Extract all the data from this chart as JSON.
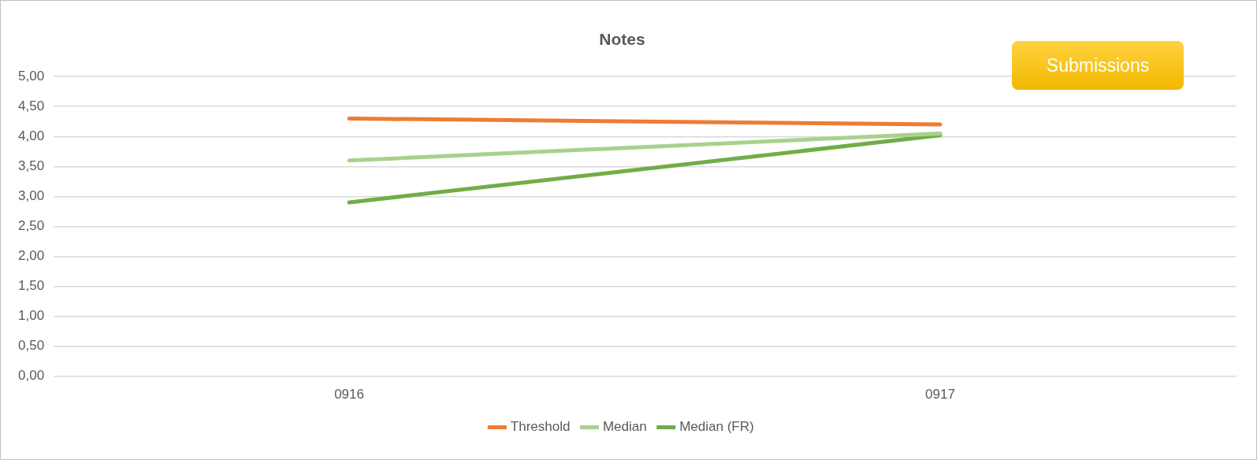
{
  "chart_data": {
    "type": "line",
    "title": "Notes",
    "categories": [
      "0916",
      "0917"
    ],
    "series": [
      {
        "name": "Threshold",
        "color": "#ed7d31",
        "values": [
          4.3,
          4.2
        ]
      },
      {
        "name": "Median",
        "color": "#a9d18e",
        "values": [
          3.6,
          4.05
        ]
      },
      {
        "name": "Median (FR)",
        "color": "#70ad47",
        "values": [
          2.9,
          4.02
        ]
      }
    ],
    "ylim": [
      0,
      5
    ],
    "yticks": [
      {
        "value": 0,
        "label": "0,00"
      },
      {
        "value": 0.5,
        "label": "0,50"
      },
      {
        "value": 1,
        "label": "1,00"
      },
      {
        "value": 1.5,
        "label": "1,50"
      },
      {
        "value": 2,
        "label": "2,00"
      },
      {
        "value": 2.5,
        "label": "2,50"
      },
      {
        "value": 3,
        "label": "3,00"
      },
      {
        "value": 3.5,
        "label": "3,50"
      },
      {
        "value": 4,
        "label": "4,00"
      },
      {
        "value": 4.5,
        "label": "4,50"
      },
      {
        "value": 5,
        "label": "5,00"
      }
    ],
    "grid": "y",
    "legend": "bottom",
    "marker": "none",
    "line_style": "solid",
    "annotations": [
      "Submissions"
    ]
  }
}
